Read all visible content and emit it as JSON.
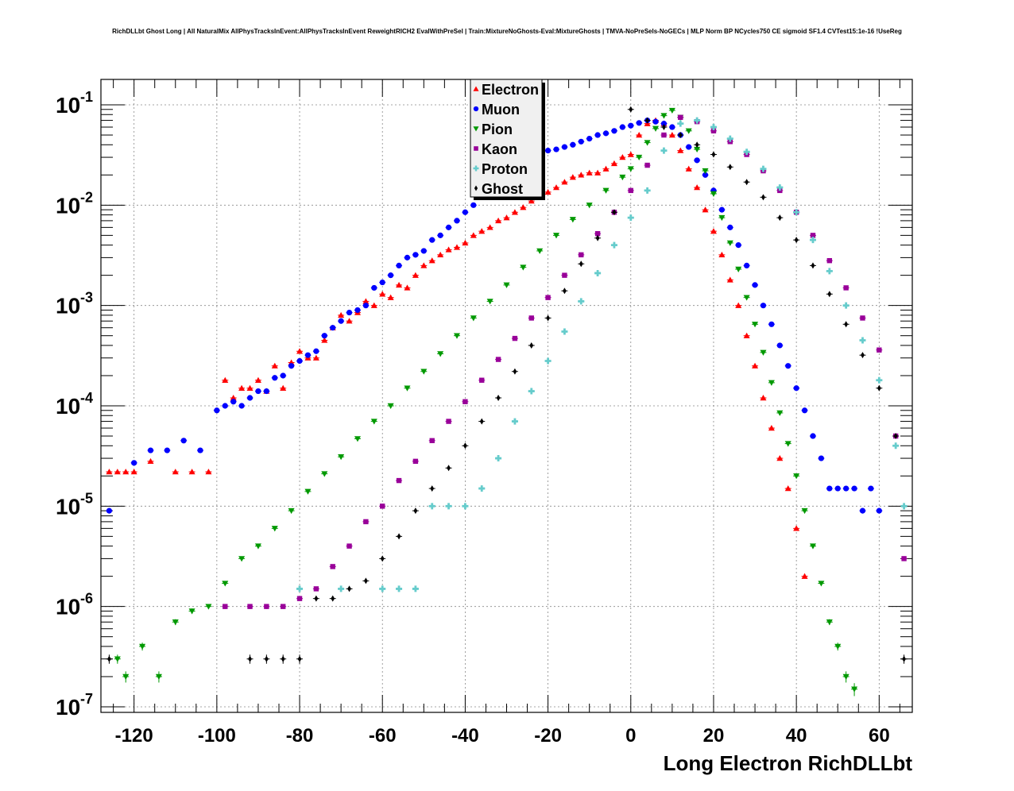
{
  "chart_data": {
    "type": "scatter",
    "title": "RichDLLbt Ghost Long | All NaturalMix AllPhysTracksInEvent:AllPhysTracksInEvent ReweightRICH2 EvalWithPreSel | Train:MixtureNoGhosts-Eval:MixtureGhosts | TMVA-NoPreSels-NoGECs | MLP Norm BP NCycles750 CE sigmoid SF1.4 CVTest15:1e-16 !UseReg",
    "xlabel": "Long Electron RichDLLbt",
    "ylabel": "",
    "xlim": [
      -128,
      68
    ],
    "ylim": [
      1e-07,
      0.2
    ],
    "yscale": "log",
    "grid": true,
    "legend_position": "top-center",
    "x_ticks": [
      -120,
      -100,
      -80,
      -60,
      -40,
      -20,
      0,
      20,
      40,
      60
    ],
    "x_tick_labels": [
      "-120",
      "-100",
      "-80",
      "-60",
      "-40",
      "-20",
      "0",
      "20",
      "40",
      "60"
    ],
    "y_ticks": [
      {
        "value": 0.1,
        "base": "10",
        "exp": "-1"
      },
      {
        "value": 0.01,
        "base": "10",
        "exp": "-2"
      },
      {
        "value": 0.001,
        "base": "10",
        "exp": "-3"
      },
      {
        "value": 0.0001,
        "base": "10",
        "exp": "-4"
      },
      {
        "value": 1e-05,
        "base": "10",
        "exp": "-5"
      },
      {
        "value": 1e-06,
        "base": "10",
        "exp": "-6"
      },
      {
        "value": 1e-07,
        "base": "10",
        "exp": "-7"
      }
    ],
    "series": [
      {
        "name": "Electron",
        "color": "#ff0000",
        "marker": "triangle-up",
        "x": [
          -126,
          -124,
          -122,
          -120,
          -116,
          -110,
          -106,
          -102,
          -98,
          -96,
          -94,
          -92,
          -90,
          -88,
          -86,
          -84,
          -82,
          -80,
          -78,
          -76,
          -74,
          -72,
          -70,
          -68,
          -66,
          -64,
          -62,
          -60,
          -58,
          -56,
          -54,
          -52,
          -50,
          -48,
          -46,
          -44,
          -42,
          -40,
          -38,
          -36,
          -34,
          -32,
          -30,
          -28,
          -26,
          -24,
          -22,
          -20,
          -18,
          -16,
          -14,
          -12,
          -10,
          -8,
          -6,
          -4,
          -2,
          0,
          2,
          4,
          6,
          8,
          10,
          12,
          14,
          16,
          18,
          20,
          22,
          24,
          26,
          28,
          30,
          32,
          34,
          36,
          38,
          40,
          42
        ],
        "y": [
          2.2e-05,
          2.2e-05,
          2.2e-05,
          2.2e-05,
          2.8e-05,
          2.2e-05,
          2.2e-05,
          2.2e-05,
          0.00018,
          0.00012,
          0.00015,
          0.00015,
          0.00018,
          0.00014,
          0.00025,
          0.00015,
          0.00027,
          0.00035,
          0.0003,
          0.0003,
          0.00045,
          0.0006,
          0.0008,
          0.0007,
          0.00085,
          0.0011,
          0.001,
          0.0013,
          0.0012,
          0.0016,
          0.0015,
          0.002,
          0.0025,
          0.0028,
          0.0032,
          0.0036,
          0.0038,
          0.0042,
          0.005,
          0.0055,
          0.006,
          0.007,
          0.0075,
          0.0085,
          0.0095,
          0.011,
          0.012,
          0.0135,
          0.015,
          0.017,
          0.019,
          0.02,
          0.021,
          0.021,
          0.023,
          0.026,
          0.03,
          0.032,
          0.05,
          0.065,
          0.07,
          0.065,
          0.05,
          0.035,
          0.023,
          0.015,
          0.009,
          0.0055,
          0.0032,
          0.0018,
          0.001,
          0.0005,
          0.00025,
          0.00012,
          6e-05,
          3e-05,
          1.5e-05,
          6e-06,
          2e-06
        ]
      },
      {
        "name": "Muon",
        "color": "#0000ff",
        "marker": "circle",
        "x": [
          -126,
          -120,
          -116,
          -112,
          -108,
          -104,
          -100,
          -98,
          -96,
          -94,
          -92,
          -90,
          -88,
          -86,
          -84,
          -82,
          -80,
          -78,
          -76,
          -74,
          -72,
          -70,
          -68,
          -66,
          -64,
          -62,
          -60,
          -58,
          -56,
          -54,
          -52,
          -50,
          -48,
          -46,
          -44,
          -42,
          -40,
          -38,
          -36,
          -34,
          -32,
          -30,
          -28,
          -26,
          -24,
          -22,
          -20,
          -18,
          -16,
          -14,
          -12,
          -10,
          -8,
          -6,
          -4,
          -2,
          0,
          2,
          4,
          6,
          8,
          10,
          12,
          14,
          16,
          18,
          20,
          22,
          24,
          26,
          28,
          30,
          32,
          34,
          36,
          38,
          40,
          42,
          44,
          46,
          48,
          50,
          52,
          54,
          56,
          58,
          60
        ],
        "y": [
          9e-06,
          2.7e-05,
          3.6e-05,
          3.6e-05,
          4.5e-05,
          3.6e-05,
          9e-05,
          0.0001,
          0.00011,
          0.0001,
          0.00012,
          0.00014,
          0.00014,
          0.00019,
          0.0002,
          0.00025,
          0.00028,
          0.00032,
          0.00035,
          0.0005,
          0.0006,
          0.0007,
          0.00085,
          0.0009,
          0.001,
          0.0015,
          0.0017,
          0.002,
          0.0025,
          0.003,
          0.0032,
          0.0035,
          0.0045,
          0.005,
          0.006,
          0.007,
          0.0085,
          0.01,
          0.013,
          0.015,
          0.018,
          0.022,
          0.025,
          0.028,
          0.03,
          0.033,
          0.035,
          0.036,
          0.038,
          0.04,
          0.043,
          0.046,
          0.05,
          0.052,
          0.055,
          0.06,
          0.062,
          0.066,
          0.07,
          0.068,
          0.065,
          0.06,
          0.05,
          0.038,
          0.028,
          0.02,
          0.014,
          0.009,
          0.006,
          0.004,
          0.0025,
          0.0016,
          0.001,
          0.00065,
          0.0004,
          0.00025,
          0.00015,
          9e-05,
          5e-05,
          3e-05,
          1.5e-05,
          1.5e-05,
          1.5e-05,
          1.5e-05,
          9e-06,
          1.5e-05,
          9e-06
        ]
      },
      {
        "name": "Pion",
        "color": "#009900",
        "marker": "triangle-down",
        "x": [
          -124,
          -122,
          -118,
          -114,
          -110,
          -106,
          -102,
          -98,
          -94,
          -90,
          -86,
          -82,
          -78,
          -74,
          -70,
          -66,
          -62,
          -58,
          -54,
          -50,
          -46,
          -42,
          -38,
          -34,
          -30,
          -26,
          -22,
          -18,
          -14,
          -10,
          -6,
          -2,
          0,
          2,
          4,
          6,
          8,
          10,
          12,
          14,
          16,
          18,
          20,
          22,
          24,
          26,
          28,
          30,
          32,
          34,
          36,
          38,
          40,
          42,
          44,
          46,
          48,
          50,
          52,
          54
        ],
        "y": [
          3e-07,
          2e-07,
          4e-07,
          2e-07,
          7e-07,
          9e-07,
          1e-06,
          1.7e-06,
          3e-06,
          4e-06,
          6e-06,
          9e-06,
          1.4e-05,
          2.1e-05,
          3.1e-05,
          4.7e-05,
          7e-05,
          0.0001,
          0.00015,
          0.00022,
          0.00033,
          0.0005,
          0.00075,
          0.0011,
          0.0016,
          0.0024,
          0.0035,
          0.005,
          0.0072,
          0.01,
          0.014,
          0.019,
          0.023,
          0.03,
          0.042,
          0.058,
          0.078,
          0.088,
          0.075,
          0.055,
          0.036,
          0.022,
          0.013,
          0.0075,
          0.0042,
          0.0023,
          0.0012,
          0.00065,
          0.00034,
          0.00017,
          8.5e-05,
          4.2e-05,
          2e-05,
          9e-06,
          4e-06,
          1.7e-06,
          7e-07,
          4e-07,
          2e-07,
          1.5e-07
        ]
      },
      {
        "name": "Kaon",
        "color": "#990099",
        "marker": "square",
        "x": [
          -98,
          -92,
          -88,
          -84,
          -80,
          -76,
          -72,
          -68,
          -64,
          -60,
          -56,
          -52,
          -48,
          -44,
          -40,
          -36,
          -32,
          -28,
          -24,
          -20,
          -16,
          -12,
          -8,
          -4,
          0,
          4,
          8,
          12,
          16,
          20,
          24,
          28,
          32,
          36,
          40,
          44,
          48,
          52,
          56,
          60,
          64,
          66
        ],
        "y": [
          1e-06,
          1e-06,
          1e-06,
          1e-06,
          1.2e-06,
          1.5e-06,
          2.5e-06,
          4e-06,
          7e-06,
          1e-05,
          1.8e-05,
          2.8e-05,
          4.5e-05,
          7e-05,
          0.00011,
          0.00018,
          0.00029,
          0.00047,
          0.00075,
          0.0012,
          0.002,
          0.0032,
          0.0052,
          0.0085,
          0.014,
          0.025,
          0.05,
          0.075,
          0.068,
          0.055,
          0.043,
          0.032,
          0.022,
          0.014,
          0.0085,
          0.005,
          0.0028,
          0.0015,
          0.00075,
          0.00036,
          5e-05,
          3e-06
        ]
      },
      {
        "name": "Proton",
        "color": "#66cccc",
        "marker": "cross",
        "x": [
          -80,
          -70,
          -60,
          -56,
          -52,
          -48,
          -44,
          -40,
          -36,
          -32,
          -28,
          -24,
          -20,
          -16,
          -12,
          -8,
          -4,
          0,
          4,
          8,
          12,
          16,
          20,
          24,
          28,
          32,
          36,
          40,
          44,
          48,
          52,
          56,
          60,
          64,
          66
        ],
        "y": [
          1.5e-06,
          1.5e-06,
          1.5e-06,
          1.5e-06,
          1.5e-06,
          1e-05,
          1e-05,
          1e-05,
          1.5e-05,
          3e-05,
          7e-05,
          0.00014,
          0.00028,
          0.00055,
          0.0011,
          0.0021,
          0.004,
          0.0075,
          0.014,
          0.035,
          0.065,
          0.07,
          0.06,
          0.046,
          0.034,
          0.023,
          0.015,
          0.0085,
          0.0045,
          0.0022,
          0.001,
          0.00045,
          0.00018,
          4e-05,
          1e-05
        ]
      },
      {
        "name": "Ghost",
        "color": "#000000",
        "marker": "diamond",
        "x": [
          -126,
          -92,
          -88,
          -84,
          -80,
          -76,
          -72,
          -68,
          -64,
          -60,
          -56,
          -52,
          -48,
          -44,
          -40,
          -36,
          -32,
          -28,
          -24,
          -20,
          -16,
          -12,
          -8,
          -4,
          0,
          4,
          8,
          12,
          16,
          20,
          24,
          28,
          32,
          36,
          40,
          44,
          48,
          52,
          56,
          60,
          64,
          66
        ],
        "y": [
          3e-07,
          3e-07,
          3e-07,
          3e-07,
          3e-07,
          1.2e-06,
          1.2e-06,
          1.5e-06,
          1.8e-06,
          3e-06,
          5e-06,
          9e-06,
          1.5e-05,
          2.4e-05,
          4e-05,
          7e-05,
          0.00012,
          0.00022,
          0.0004,
          0.00075,
          0.0014,
          0.0026,
          0.0047,
          0.0085,
          0.09,
          0.07,
          0.06,
          0.05,
          0.04,
          0.032,
          0.024,
          0.017,
          0.012,
          0.0075,
          0.0045,
          0.0025,
          0.0013,
          0.00065,
          0.00032,
          0.00015,
          5e-05,
          3e-07
        ]
      }
    ]
  }
}
